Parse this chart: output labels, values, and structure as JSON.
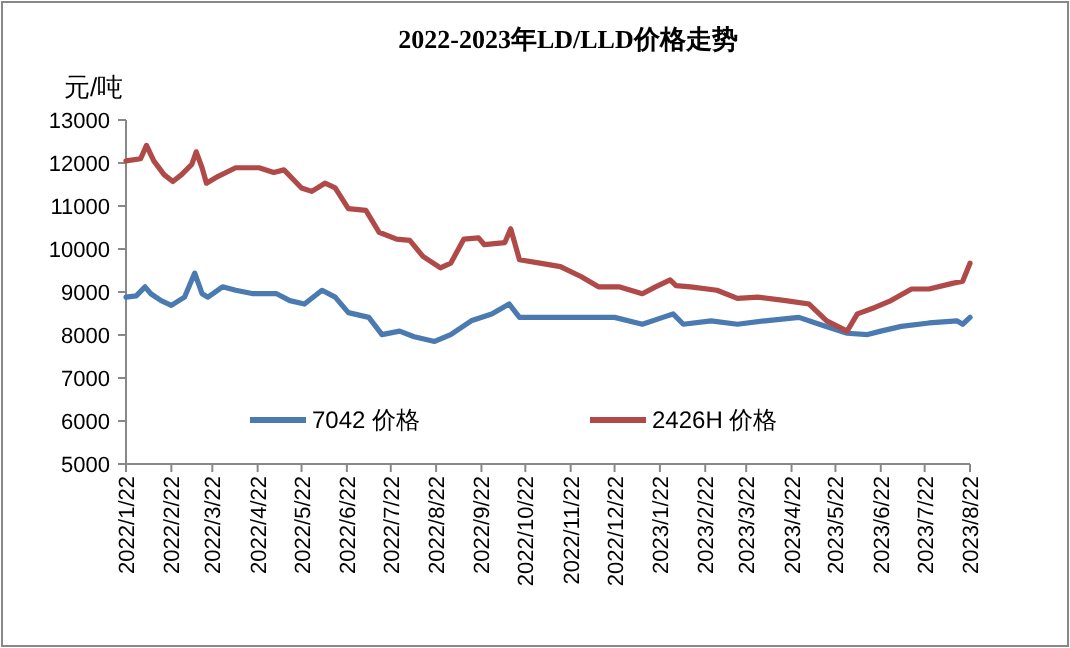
{
  "chart_data": {
    "type": "line",
    "title": "2022-2023年LD/LLD价格走势",
    "ylabel": "元/吨",
    "xlim": [
      "2022-01-22",
      "2023-08-22"
    ],
    "xticks": [
      {
        "value": "2022-01-22",
        "label": "2022/1/22"
      },
      {
        "value": "2022-02-22",
        "label": "2022/2/22"
      },
      {
        "value": "2022-03-22",
        "label": "2022/3/22"
      },
      {
        "value": "2022-04-22",
        "label": "2022/4/22"
      },
      {
        "value": "2022-05-22",
        "label": "2022/5/22"
      },
      {
        "value": "2022-06-22",
        "label": "2022/6/22"
      },
      {
        "value": "2022-07-22",
        "label": "2022/7/22"
      },
      {
        "value": "2022-08-22",
        "label": "2022/8/22"
      },
      {
        "value": "2022-09-22",
        "label": "2022/9/22"
      },
      {
        "value": "2022-10-22",
        "label": "2022/10/22"
      },
      {
        "value": "2022-11-22",
        "label": "2022/11/22"
      },
      {
        "value": "2022-12-22",
        "label": "2022/12/22"
      },
      {
        "value": "2023-01-22",
        "label": "2023/1/22"
      },
      {
        "value": "2023-02-22",
        "label": "2023/2/22"
      },
      {
        "value": "2023-03-22",
        "label": "2023/3/22"
      },
      {
        "value": "2023-04-22",
        "label": "2023/4/22"
      },
      {
        "value": "2023-05-22",
        "label": "2023/5/22"
      },
      {
        "value": "2023-06-22",
        "label": "2023/6/22"
      },
      {
        "value": "2023-07-22",
        "label": "2023/7/22"
      },
      {
        "value": "2023-08-22",
        "label": "2023/8/22"
      }
    ],
    "ylim": [
      5000,
      13000
    ],
    "yticks": [
      5000,
      6000,
      7000,
      8000,
      9000,
      10000,
      11000,
      12000,
      13000
    ],
    "grid": false,
    "legend": "bottom",
    "marker": "none",
    "line_style": "solid",
    "series": [
      {
        "name": "7042 价格",
        "color": "#4a7ab0",
        "x": [
          "2022-01-22",
          "2022-01-29",
          "2022-02-04",
          "2022-02-08",
          "2022-02-15",
          "2022-02-22",
          "2022-03-03",
          "2022-03-10",
          "2022-03-15",
          "2022-03-19",
          "2022-03-29",
          "2022-04-07",
          "2022-04-19",
          "2022-05-05",
          "2022-05-14",
          "2022-05-24",
          "2022-06-05",
          "2022-06-14",
          "2022-06-23",
          "2022-07-07",
          "2022-07-16",
          "2022-07-28",
          "2022-08-07",
          "2022-08-21",
          "2022-09-01",
          "2022-09-15",
          "2022-09-29",
          "2022-10-11",
          "2022-10-18",
          "2022-11-06",
          "2022-11-29",
          "2022-12-22",
          "2023-01-10",
          "2023-01-24",
          "2023-01-31",
          "2023-02-07",
          "2023-02-26",
          "2023-03-16",
          "2023-04-04",
          "2023-04-27",
          "2023-05-11",
          "2023-05-30",
          "2023-06-13",
          "2023-06-22",
          "2023-07-06",
          "2023-07-25",
          "2023-08-13",
          "2023-08-17",
          "2023-08-22"
        ],
        "values": [
          8880,
          8910,
          9120,
          8960,
          8800,
          8690,
          8880,
          9440,
          8960,
          8880,
          9120,
          9040,
          8960,
          8960,
          8800,
          8720,
          9040,
          8880,
          8520,
          8410,
          8010,
          8090,
          7960,
          7850,
          8010,
          8330,
          8490,
          8720,
          8410,
          8410,
          8410,
          8410,
          8250,
          8410,
          8490,
          8250,
          8330,
          8250,
          8330,
          8410,
          8250,
          8040,
          8010,
          8090,
          8200,
          8280,
          8330,
          8250,
          8410
        ]
      },
      {
        "name": "2426H 价格",
        "color": "#b04a48",
        "x": [
          "2022-01-22",
          "2022-02-01",
          "2022-02-05",
          "2022-02-10",
          "2022-02-17",
          "2022-02-23",
          "2022-03-01",
          "2022-03-08",
          "2022-03-11",
          "2022-03-15",
          "2022-03-18",
          "2022-03-26",
          "2022-04-07",
          "2022-04-23",
          "2022-05-03",
          "2022-05-10",
          "2022-05-22",
          "2022-05-29",
          "2022-06-07",
          "2022-06-14",
          "2022-06-23",
          "2022-07-05",
          "2022-07-14",
          "2022-07-26",
          "2022-08-04",
          "2022-08-13",
          "2022-08-25",
          "2022-09-01",
          "2022-09-10",
          "2022-09-20",
          "2022-09-24",
          "2022-10-08",
          "2022-10-12",
          "2022-10-18",
          "2022-11-01",
          "2022-11-15",
          "2022-11-29",
          "2022-12-11",
          "2022-12-25",
          "2023-01-10",
          "2023-01-19",
          "2023-01-29",
          "2023-02-02",
          "2023-02-12",
          "2023-03-02",
          "2023-03-16",
          "2023-03-30",
          "2023-04-18",
          "2023-05-04",
          "2023-05-16",
          "2023-05-30",
          "2023-06-06",
          "2023-06-18",
          "2023-06-29",
          "2023-07-13",
          "2023-07-25",
          "2023-08-10",
          "2023-08-17",
          "2023-08-22"
        ],
        "values": [
          12050,
          12100,
          12410,
          12050,
          11730,
          11570,
          11730,
          11970,
          12260,
          11890,
          11530,
          11690,
          11890,
          11890,
          11780,
          11840,
          11420,
          11340,
          11530,
          11420,
          10940,
          10900,
          10390,
          10230,
          10200,
          9830,
          9560,
          9670,
          10230,
          10260,
          10100,
          10150,
          10470,
          9750,
          9670,
          9590,
          9360,
          9120,
          9120,
          8960,
          9120,
          9280,
          9150,
          9120,
          9040,
          8850,
          8880,
          8800,
          8720,
          8330,
          8090,
          8490,
          8640,
          8800,
          9070,
          9070,
          9200,
          9250,
          9670
        ]
      }
    ]
  }
}
